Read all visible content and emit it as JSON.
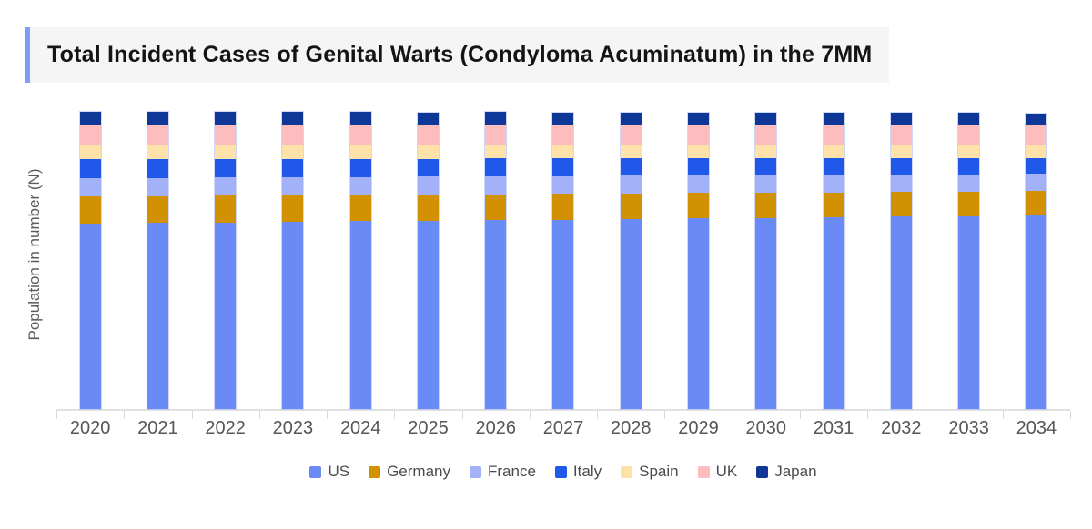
{
  "title": {
    "text": "Total Incident Cases of Genital Warts (Condyloma Acuminatum) in the 7MM"
  },
  "accent_color": "#7e9cf6",
  "title_strip_color": "#f5f5f6",
  "axis_color": "#e1e1e1",
  "chart_data": {
    "type": "bar",
    "stacked": true,
    "title": "Total Incident Cases of Genital Warts (Condyloma Acuminatum) in the 7MM",
    "xlabel": "",
    "ylabel": "Population in number (N)",
    "units": "relative height units (y axis shows no numeric ticks)",
    "ylim": [
      0,
      340
    ],
    "grid": false,
    "legend_position": "bottom",
    "categories": [
      "2020",
      "2021",
      "2022",
      "2023",
      "2024",
      "2025",
      "2026",
      "2027",
      "2028",
      "2029",
      "2030",
      "2031",
      "2032",
      "2033",
      "2034"
    ],
    "series": [
      {
        "name": "US",
        "color": "#6a8bf5",
        "values": [
          204.0,
          204.6,
          205.3,
          205.9,
          206.6,
          207.2,
          207.9,
          208.5,
          209.1,
          209.8,
          210.4,
          211.1,
          211.7,
          212.4,
          213.0
        ]
      },
      {
        "name": "Germany",
        "color": "#d29003",
        "values": [
          30.0,
          29.8,
          29.5,
          29.3,
          29.1,
          28.8,
          28.6,
          28.4,
          28.1,
          27.9,
          27.6,
          27.4,
          27.2,
          26.9,
          26.7
        ]
      },
      {
        "name": "France",
        "color": "#a2b1f8",
        "values": [
          20.0,
          19.9,
          19.9,
          19.8,
          19.7,
          19.6,
          19.6,
          19.5,
          19.4,
          19.3,
          19.3,
          19.2,
          19.1,
          19.1,
          19.0
        ]
      },
      {
        "name": "Italy",
        "color": "#2059e9",
        "values": [
          21.0,
          20.8,
          20.5,
          20.3,
          20.1,
          19.8,
          19.6,
          19.4,
          19.1,
          18.9,
          18.6,
          18.4,
          18.2,
          17.9,
          17.7
        ]
      },
      {
        "name": "Spain",
        "color": "#fee2a9",
        "values": [
          15.0,
          14.9,
          14.9,
          14.8,
          14.7,
          14.6,
          14.6,
          14.5,
          14.4,
          14.3,
          14.3,
          14.2,
          14.1,
          14.1,
          14.0
        ]
      },
      {
        "name": "UK",
        "color": "#fdbcbe",
        "values": [
          22.0,
          22.0,
          22.0,
          22.0,
          22.0,
          22.0,
          22.0,
          22.0,
          22.0,
          22.0,
          22.0,
          22.0,
          22.0,
          22.0,
          22.0
        ]
      },
      {
        "name": "Japan",
        "color": "#0e3798",
        "values": [
          15.3,
          15.1,
          15.0,
          14.8,
          14.6,
          14.5,
          14.3,
          14.2,
          14.0,
          13.8,
          13.7,
          13.5,
          13.3,
          13.2,
          13.0
        ]
      }
    ]
  }
}
